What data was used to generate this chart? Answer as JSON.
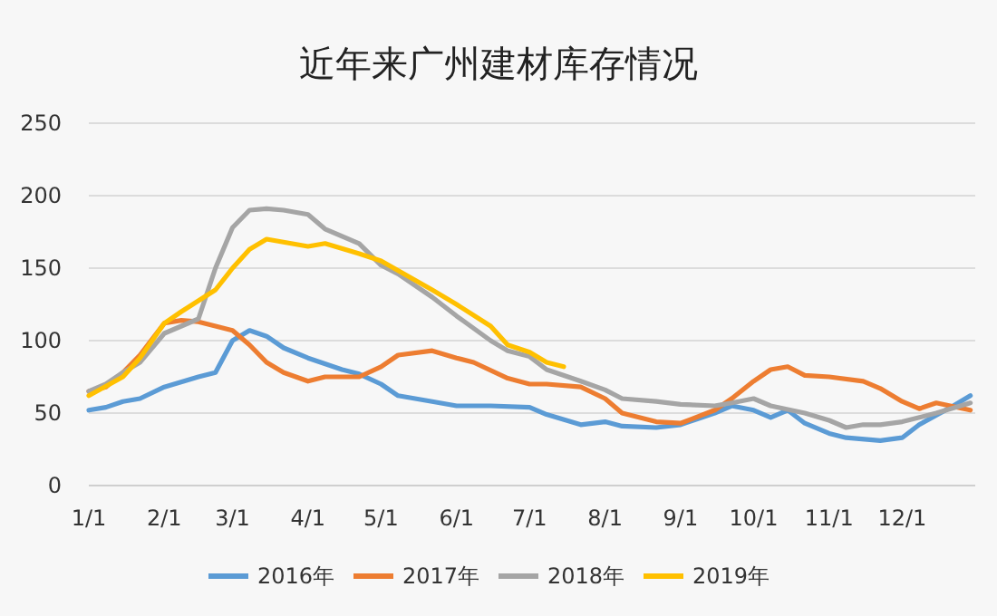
{
  "chart_data": {
    "type": "line",
    "title": "近年来广州建材库存情况",
    "xlim": [
      "--01-01",
      "--12-31"
    ],
    "xticks": [
      {
        "value": "--01-01",
        "label": "1/1"
      },
      {
        "value": "--02-01",
        "label": "2/1"
      },
      {
        "value": "--03-01",
        "label": "3/1"
      },
      {
        "value": "--04-01",
        "label": "4/1"
      },
      {
        "value": "--05-01",
        "label": "5/1"
      },
      {
        "value": "--06-01",
        "label": "6/1"
      },
      {
        "value": "--07-01",
        "label": "7/1"
      },
      {
        "value": "--08-01",
        "label": "8/1"
      },
      {
        "value": "--09-01",
        "label": "9/1"
      },
      {
        "value": "--10-01",
        "label": "10/1"
      },
      {
        "value": "--11-01",
        "label": "11/1"
      },
      {
        "value": "--12-01",
        "label": "12/1"
      }
    ],
    "ylim": [
      0,
      250
    ],
    "yticks": [
      0,
      50,
      100,
      150,
      200,
      250
    ],
    "grid": "y",
    "legend": "bottom",
    "marker": "none",
    "line_style": "solid",
    "series": [
      {
        "name": "2016年",
        "color": "#5b9bd5",
        "x": [
          "--01-01",
          "--01-08",
          "--01-15",
          "--01-22",
          "--02-01",
          "--02-15",
          "--02-22",
          "--03-01",
          "--03-08",
          "--03-15",
          "--03-22",
          "--04-01",
          "--04-15",
          "--04-22",
          "--05-01",
          "--05-08",
          "--05-22",
          "--06-01",
          "--06-15",
          "--07-01",
          "--07-08",
          "--07-22",
          "--08-01",
          "--08-08",
          "--08-22",
          "--09-01",
          "--09-15",
          "--09-22",
          "--10-01",
          "--10-08",
          "--10-15",
          "--10-22",
          "--11-01",
          "--11-08",
          "--11-22",
          "--12-01",
          "--12-08",
          "--12-22",
          "--12-29"
        ],
        "values": [
          52,
          54,
          58,
          60,
          68,
          75,
          78,
          100,
          107,
          103,
          95,
          88,
          80,
          77,
          70,
          62,
          58,
          55,
          55,
          54,
          49,
          42,
          44,
          41,
          40,
          42,
          50,
          55,
          52,
          47,
          52,
          43,
          36,
          33,
          31,
          33,
          42,
          55,
          62
        ]
      },
      {
        "name": "2017年",
        "color": "#ed7d31",
        "x": [
          "--01-01",
          "--01-08",
          "--01-15",
          "--01-22",
          "--02-01",
          "--02-08",
          "--02-15",
          "--02-22",
          "--03-01",
          "--03-08",
          "--03-15",
          "--03-22",
          "--04-01",
          "--04-08",
          "--04-22",
          "--05-01",
          "--05-08",
          "--05-22",
          "--06-01",
          "--06-08",
          "--06-22",
          "--07-01",
          "--07-08",
          "--07-22",
          "--08-01",
          "--08-08",
          "--08-22",
          "--09-01",
          "--09-15",
          "--09-22",
          "--10-01",
          "--10-08",
          "--10-15",
          "--10-22",
          "--11-01",
          "--11-15",
          "--11-22",
          "--12-01",
          "--12-08",
          "--12-15",
          "--12-29"
        ],
        "values": [
          65,
          68,
          78,
          90,
          112,
          114,
          113,
          110,
          107,
          97,
          85,
          78,
          72,
          75,
          75,
          82,
          90,
          93,
          88,
          85,
          74,
          70,
          70,
          68,
          60,
          50,
          44,
          43,
          52,
          60,
          72,
          80,
          82,
          76,
          75,
          72,
          67,
          58,
          53,
          57,
          52
        ]
      },
      {
        "name": "2018年",
        "color": "#a5a5a5",
        "x": [
          "--01-01",
          "--01-08",
          "--01-15",
          "--01-22",
          "--02-01",
          "--02-08",
          "--02-15",
          "--02-22",
          "--03-01",
          "--03-08",
          "--03-15",
          "--03-22",
          "--04-01",
          "--04-08",
          "--04-22",
          "--05-01",
          "--05-08",
          "--05-22",
          "--06-01",
          "--06-15",
          "--06-22",
          "--07-01",
          "--07-08",
          "--07-22",
          "--08-01",
          "--08-08",
          "--08-22",
          "--09-01",
          "--09-15",
          "--09-22",
          "--10-01",
          "--10-08",
          "--10-22",
          "--11-01",
          "--11-08",
          "--11-15",
          "--11-22",
          "--12-01",
          "--12-15",
          "--12-29"
        ],
        "values": [
          65,
          70,
          78,
          85,
          105,
          110,
          115,
          150,
          178,
          190,
          191,
          190,
          187,
          177,
          167,
          152,
          146,
          130,
          117,
          100,
          93,
          89,
          80,
          72,
          66,
          60,
          58,
          56,
          55,
          57,
          60,
          55,
          50,
          45,
          40,
          42,
          42,
          44,
          50,
          57
        ]
      },
      {
        "name": "2019年",
        "color": "#ffc000",
        "x": [
          "--01-01",
          "--01-15",
          "--01-22",
          "--02-01",
          "--02-08",
          "--02-22",
          "--03-01",
          "--03-08",
          "--03-15",
          "--04-01",
          "--04-08",
          "--04-22",
          "--05-01",
          "--05-22",
          "--06-01",
          "--06-15",
          "--06-22",
          "--07-01",
          "--07-08",
          "--07-15"
        ],
        "values": [
          62,
          75,
          88,
          112,
          120,
          135,
          150,
          163,
          170,
          165,
          167,
          160,
          155,
          135,
          125,
          110,
          97,
          92,
          85,
          82
        ]
      }
    ]
  }
}
